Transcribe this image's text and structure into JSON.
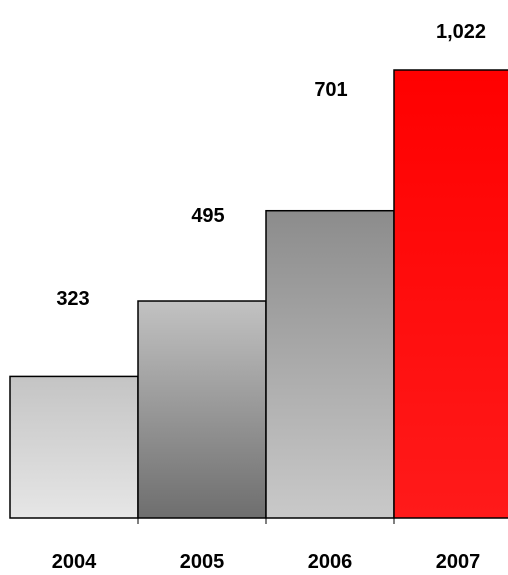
{
  "chart_data": {
    "type": "bar",
    "categories": [
      "2004",
      "2005",
      "2006",
      "2007"
    ],
    "values": [
      323,
      495,
      701,
      1022
    ],
    "data_labels": [
      "323",
      "495",
      "701",
      "1,022"
    ],
    "ylim": [
      0,
      1022
    ],
    "grid": false,
    "legend": "none",
    "bar_fills": [
      "light-gray-gradient",
      "gray-gradient",
      "gray-gradient-light",
      "red"
    ],
    "colors": {
      "light_gray_top": "#c4c4c4",
      "light_gray_bottom": "#e6e6e6",
      "gray_top": "#c2c2c2",
      "gray_bottom": "#6e6e6e",
      "gray2_top": "#8c8c8c",
      "gray2_bottom": "#c9c9c9",
      "red_top": "#ff0000",
      "red_bottom": "#ff1a1a",
      "outline": "#000000"
    }
  }
}
